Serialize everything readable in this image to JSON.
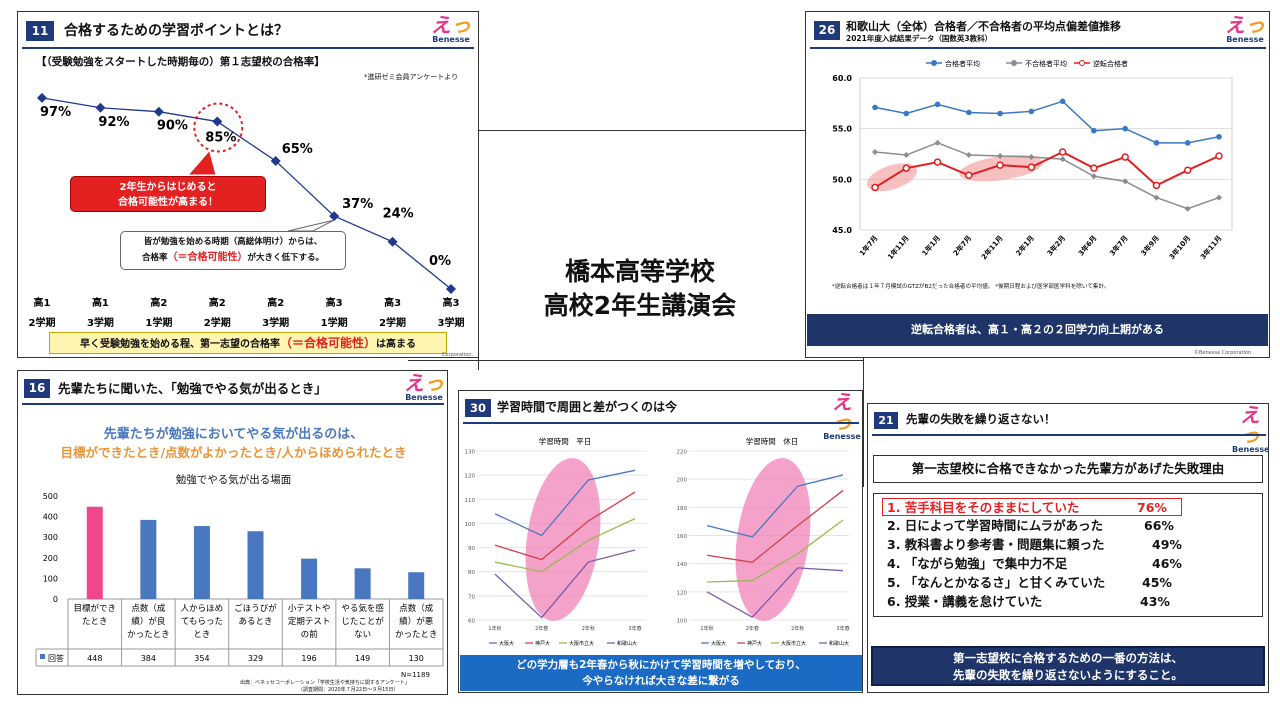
{
  "center": {
    "line1": "橋本高等学校",
    "line2": "高校2年生講演会"
  },
  "logo": {
    "brand": "Benesse"
  },
  "s11": {
    "num": "11",
    "title": "合格するための学習ポイントとは？",
    "subtitle": "【（受験勉強をスタートした時期毎の）第１志望校の合格率】",
    "source": "*進研ゼミ会員アンケートより",
    "chart_data": {
      "type": "line",
      "categories": [
        "高1 2学期",
        "高1 3学期",
        "高2 1学期",
        "高2 2学期",
        "高2 3学期",
        "高3 1学期",
        "高3 2学期",
        "高3 3学期"
      ],
      "values": [
        97,
        92,
        90,
        85,
        65,
        37,
        24,
        0
      ],
      "ylim": [
        0,
        100
      ]
    },
    "point_labels": [
      "97%",
      "92%",
      "90%",
      "85%",
      "65%",
      "37%",
      "24%",
      "0%"
    ],
    "x_top": [
      "高1",
      "高1",
      "高2",
      "高2",
      "高2",
      "高3",
      "高3",
      "高3"
    ],
    "x_bottom": [
      "2学期",
      "3学期",
      "1学期",
      "2学期",
      "3学期",
      "1学期",
      "2学期",
      "3学期"
    ],
    "callout_red": {
      "line1": "2年生からはじめると",
      "line2": "合格可能性が高まる！"
    },
    "callout_white": {
      "line1": "皆が勉強を始める時期（高総体明け）からは、",
      "line2a": "合格率",
      "line2b": "（＝合格可能性）",
      "line2c": "が大きく低下する。"
    },
    "footer": {
      "a": "早く受験勉強を始める程、第一志望の合格率",
      "b": "（＝合格可能性）",
      "c": "は高まる"
    },
    "corp": "Corporation."
  },
  "s26": {
    "num": "26",
    "title": "和歌山大（全体）合格者／不合格者の平均点偏差値推移",
    "subtitle": "2021年度入試結果データ（国数英3教科）",
    "legend": [
      "合格者平均",
      "不合格者平均",
      "逆転合格者"
    ],
    "colors": {
      "pass": "#3b78c2",
      "fail": "#8c8c8c",
      "rev": "#e02020"
    },
    "chart_data": {
      "type": "line",
      "categories": [
        "1年7月",
        "1年11月",
        "1年1月",
        "2年7月",
        "2年11月",
        "2年1月",
        "3年2月",
        "3年6月",
        "3年7月",
        "3年9月",
        "3年10月",
        "3年11月"
      ],
      "series": [
        {
          "name": "合格者平均",
          "values": [
            57.1,
            56.5,
            57.4,
            56.6,
            56.5,
            56.7,
            57.7,
            54.8,
            55.0,
            53.6,
            53.6,
            54.2
          ]
        },
        {
          "name": "不合格者平均",
          "values": [
            52.7,
            52.4,
            53.6,
            52.4,
            52.3,
            52.2,
            52.0,
            50.3,
            49.8,
            48.2,
            47.1,
            48.2
          ]
        },
        {
          "name": "逆転合格者",
          "values": [
            49.2,
            51.1,
            51.7,
            50.4,
            51.4,
            51.2,
            52.7,
            51.1,
            52.2,
            49.4,
            50.9,
            52.3
          ]
        }
      ],
      "ylim": [
        45,
        60
      ],
      "yticks": [
        "60.0",
        "55.0",
        "50.0",
        "45.0"
      ]
    },
    "note": "*逆転合格者は１年７月模試のGTZがB2だった合格者の平均値。 *後期日程および医学部医学科を除いて集計。",
    "banner": "逆転合格者は、高１・高２の２回学力向上期がある",
    "corp": "©Benesse Corporation."
  },
  "s16": {
    "num": "16",
    "title": "先輩たちに聞いた、「勉強でやる気が出るとき」",
    "lead1": "先輩たちが勉強においてやる気が出るのは、",
    "lead2": "目標ができたとき/点数がよかったとき/人からほめられたとき",
    "chart_title": "勉強でやる気が出る場面",
    "chart_data": {
      "type": "bar",
      "categories": [
        "目標ができたとき",
        "点数（成績）が良かったとき",
        "人からほめてもらったとき",
        "ごほうびがあるとき",
        "小テストや定期テストの前",
        "やる気を感じたことがない",
        "点数（成績）が悪かったとき"
      ],
      "values": [
        448,
        384,
        354,
        329,
        196,
        149,
        130
      ],
      "ylim": [
        0,
        500
      ],
      "yticks": [
        "500",
        "400",
        "300",
        "200",
        "100",
        "0"
      ]
    },
    "cat_lines": [
      [
        "目標ができ",
        "たとき"
      ],
      [
        "点数（成",
        "績）が良",
        "かったとき"
      ],
      [
        "人からほめ",
        "てもらった",
        "とき"
      ],
      [
        "ごほうびが",
        "あるとき"
      ],
      [
        "小テストや",
        "定期テスト",
        "の前"
      ],
      [
        "やる気を感",
        "じたことが",
        "ない"
      ],
      [
        "点数（成",
        "績）が悪",
        "かったとき"
      ]
    ],
    "value_labels": [
      "448",
      "384",
      "354",
      "329",
      "196",
      "149",
      "130"
    ],
    "series_label": "回答",
    "n": "N=1189",
    "source1": "出典：ベネッセコーポレーション「学校生活や気持ちに関するアンケート」",
    "source2": "（調査期間：2020年７月22日～９月15日）"
  },
  "s30": {
    "num": "30",
    "title": "学習時間で周囲と差がつくのは今",
    "chart_data": [
      {
        "type": "line",
        "title": "学習時間　平日",
        "categories": [
          "1年秋",
          "2年春",
          "2年秋",
          "3年春"
        ],
        "yticks": [
          "130",
          "120",
          "110",
          "100",
          "90",
          "80",
          "70",
          "60"
        ],
        "ylim": [
          60,
          130
        ],
        "series": [
          {
            "name": "大阪大",
            "values": [
              104,
              95,
              118,
              122
            ]
          },
          {
            "name": "神戸大",
            "values": [
              91,
              85,
              101,
              113
            ]
          },
          {
            "name": "大阪市立大",
            "values": [
              84,
              80,
              93,
              102
            ]
          },
          {
            "name": "和歌山大",
            "values": [
              79,
              61,
              84,
              89
            ]
          }
        ]
      },
      {
        "type": "line",
        "title": "学習時間　休日",
        "categories": [
          "1年秋",
          "2年春",
          "2年秋",
          "3年春"
        ],
        "yticks": [
          "220",
          "200",
          "180",
          "160",
          "140",
          "120",
          "100"
        ],
        "ylim": [
          100,
          220
        ],
        "series": [
          {
            "name": "大阪大",
            "values": [
              167,
              159,
              195,
              203
            ]
          },
          {
            "name": "神戸大",
            "values": [
              146,
              141,
              167,
              192
            ]
          },
          {
            "name": "大阪市立大",
            "values": [
              127,
              128,
              147,
              171
            ]
          },
          {
            "name": "和歌山大",
            "values": [
              120,
              102,
              137,
              135
            ]
          }
        ]
      }
    ],
    "colors": [
      "#4a78c0",
      "#d0404a",
      "#9ab84e",
      "#7a5aa6"
    ],
    "banner1": "どの学力層も2年春から秋にかけて学習時間を増やしており、",
    "banner2": "今やらなければ大きな差に繋がる"
  },
  "s21": {
    "num": "21",
    "title": "先輩の失敗を繰り返さない！",
    "box_title": "第一志望校に合格できなかった先輩方があげた失敗理由",
    "items": [
      {
        "text": "1. 苦手科目をそのままにしていた",
        "pct": "76%"
      },
      {
        "text": "2. 日によって学習時間にムラがあった",
        "pct": "66%"
      },
      {
        "text": "3. 教科書より参考書・問題集に頼った",
        "pct": "49%"
      },
      {
        "text": "4. 「ながら勉強」で集中力不足",
        "pct": "46%"
      },
      {
        "text": "5. 「なんとかなるさ」と甘くみていた",
        "pct": "45%"
      },
      {
        "text": "6. 授業・講義を怠けていた",
        "pct": "43%"
      }
    ],
    "banner1": "第一志望校に合格するための一番の方法は、",
    "banner2": "先輩の失敗を繰り返さないようにすること。"
  }
}
